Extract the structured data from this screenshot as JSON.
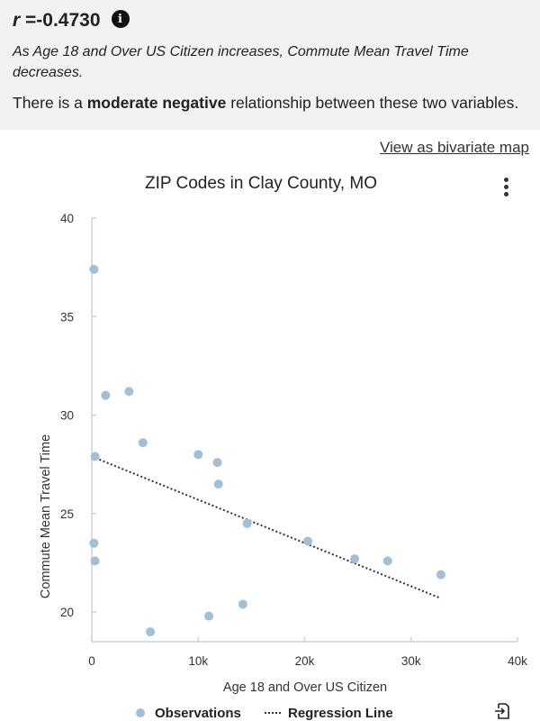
{
  "summary": {
    "r_var": "r",
    "r_value": "=-0.4730",
    "description": "As Age 18 and Over US Citizen increases, Commute Mean Travel Time decreases.",
    "relation_prefix": "There is a ",
    "relation_strength": "moderate negative",
    "relation_suffix": " relationship between these two variables."
  },
  "links": {
    "bivariate_map": "View as bivariate map"
  },
  "icons": {
    "info": "info-icon",
    "menu": "kebab-menu-icon",
    "export": "export-icon"
  },
  "colors": {
    "points": "#a3bfd6",
    "regression": "#333333",
    "axis": "#c8d0e6"
  },
  "chart_data": {
    "type": "scatter",
    "title": "ZIP Codes in Clay County, MO",
    "xlabel": "Age 18 and Over US Citizen",
    "ylabel": "Commute Mean Travel Time",
    "xlim": [
      0,
      40000
    ],
    "ylim": [
      18.5,
      40
    ],
    "x_ticks": [
      0,
      10000,
      20000,
      30000,
      40000
    ],
    "x_tick_labels": [
      "0",
      "10k",
      "20k",
      "30k",
      "40k"
    ],
    "y_ticks": [
      20,
      25,
      30,
      35,
      40
    ],
    "y_tick_labels": [
      "20",
      "25",
      "30",
      "35",
      "40"
    ],
    "grid": false,
    "legend_position": "bottom",
    "legend": [
      {
        "name": "Observations",
        "marker": "dot"
      },
      {
        "name": "Regression Line",
        "marker": "dotted-line"
      }
    ],
    "series": [
      {
        "name": "Observations",
        "points": [
          {
            "x": 200,
            "y": 37.4
          },
          {
            "x": 1300,
            "y": 31.0
          },
          {
            "x": 3500,
            "y": 31.2
          },
          {
            "x": 300,
            "y": 27.9
          },
          {
            "x": 4800,
            "y": 28.6
          },
          {
            "x": 10000,
            "y": 28.0
          },
          {
            "x": 11800,
            "y": 27.6
          },
          {
            "x": 11900,
            "y": 26.5
          },
          {
            "x": 14600,
            "y": 24.5
          },
          {
            "x": 200,
            "y": 23.5
          },
          {
            "x": 300,
            "y": 22.6
          },
          {
            "x": 20300,
            "y": 23.6
          },
          {
            "x": 24700,
            "y": 22.7
          },
          {
            "x": 27800,
            "y": 22.6
          },
          {
            "x": 32800,
            "y": 21.9
          },
          {
            "x": 14200,
            "y": 20.4
          },
          {
            "x": 11000,
            "y": 19.8
          },
          {
            "x": 5500,
            "y": 19.0
          }
        ]
      },
      {
        "name": "Regression Line",
        "line": [
          {
            "x": 0,
            "y": 27.9
          },
          {
            "x": 32800,
            "y": 20.7
          }
        ]
      }
    ]
  }
}
